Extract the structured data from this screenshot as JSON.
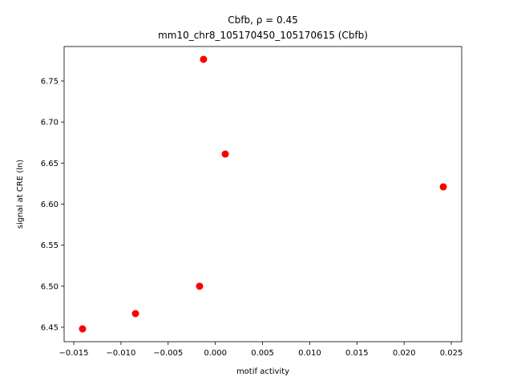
{
  "chart_data": {
    "type": "scatter",
    "title": "Cbfb, ρ = 0.45",
    "subtitle": "mm10_chr8_105170450_105170615 (Cbfb)",
    "x_label": "motif activity",
    "y_label": "signal at CRE (ln)",
    "series": [
      {
        "color": "#ff0000",
        "x": [
          -0.01407,
          -0.00846,
          -0.00167,
          -0.00125,
          0.00105,
          0.02415
        ],
        "values": [
          6.448,
          6.4666,
          6.5,
          6.7764,
          6.661,
          6.621
        ]
      }
    ],
    "xlim": [
      -0.01602,
      0.0261
    ],
    "ylim": [
      6.4324,
      6.792
    ],
    "xticks": [
      {
        "value": -0.015,
        "label": "−0.015"
      },
      {
        "value": -0.01,
        "label": "−0.010"
      },
      {
        "value": -0.005,
        "label": "−0.005"
      },
      {
        "value": 0,
        "label": "0.000"
      },
      0.005,
      {
        "value": 0.01,
        "label": "0.010"
      },
      0.015,
      {
        "value": 0.02,
        "label": "0.020"
      },
      0.025
    ],
    "yticks": [
      6.45,
      {
        "value": 6.5,
        "label": "6.50"
      },
      6.55,
      {
        "value": 6.6,
        "label": "6.60"
      },
      6.65,
      {
        "value": 6.7,
        "label": "6.70"
      },
      6.75
    ],
    "grid": false
  }
}
